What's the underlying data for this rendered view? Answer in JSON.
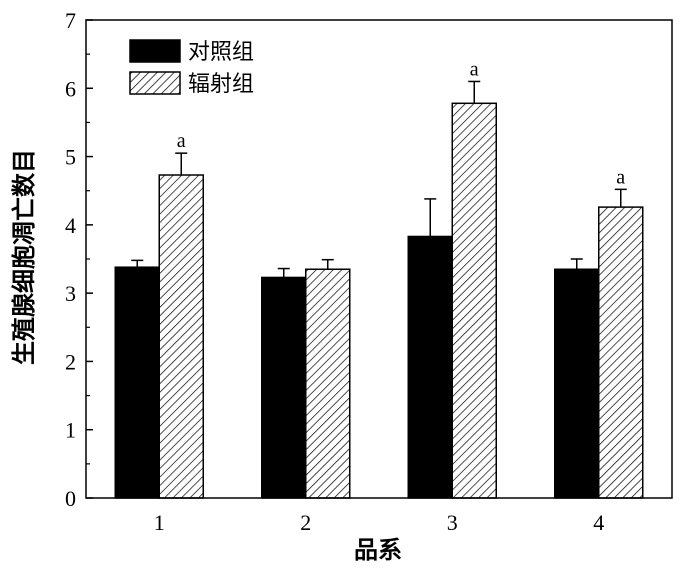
{
  "chart_data": {
    "type": "bar",
    "title": "",
    "xlabel": "品系",
    "ylabel": "生殖腺细胞凋亡数目",
    "categories": [
      "1",
      "2",
      "3",
      "4"
    ],
    "ylim": [
      0,
      7
    ],
    "yticks": [
      "0",
      "1",
      "2",
      "3",
      "4",
      "5",
      "6",
      "7"
    ],
    "series": [
      {
        "name": "对照组",
        "values": [
          3.38,
          3.23,
          3.83,
          3.35
        ],
        "errors": [
          0.1,
          0.13,
          0.55,
          0.15
        ],
        "fill": "solid",
        "color": "#000000",
        "annotations": [
          "",
          "",
          "",
          ""
        ]
      },
      {
        "name": "辐射组",
        "values": [
          4.73,
          3.35,
          5.78,
          4.26
        ],
        "errors": [
          0.32,
          0.14,
          0.32,
          0.26
        ],
        "fill": "hatch",
        "color": "#000000",
        "annotations": [
          "a",
          "",
          "a",
          "a"
        ]
      }
    ],
    "legend_position": "top-left"
  }
}
